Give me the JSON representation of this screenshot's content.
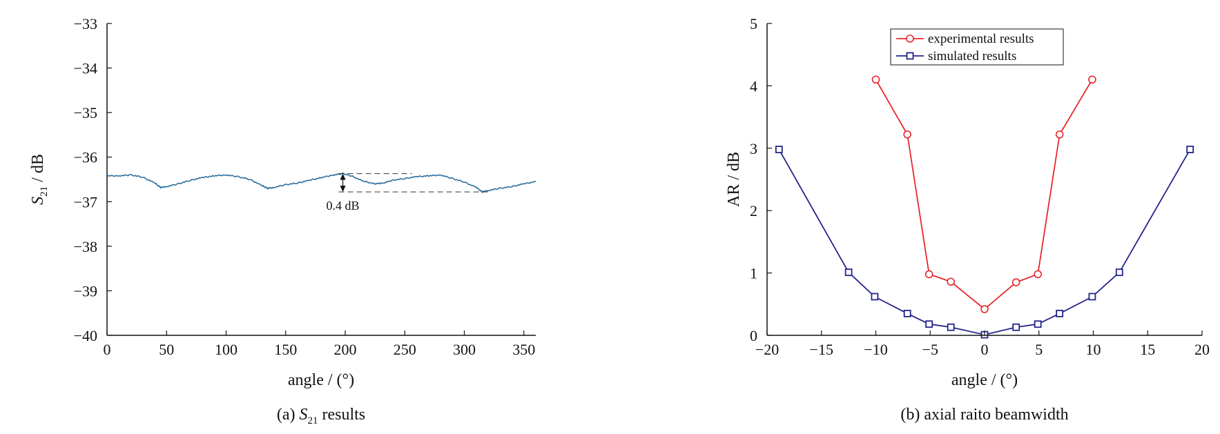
{
  "chart_data": [
    {
      "id": "a",
      "type": "line",
      "caption_prefix": "(a) ",
      "caption_var": "S",
      "caption_sub": "21",
      "caption_suffix": " results",
      "xlabel": "angle / (°)",
      "ylabel_var": "S",
      "ylabel_sub": "21",
      "ylabel_suffix": " / dB",
      "xlim": [
        0,
        360
      ],
      "ylim": [
        -40,
        -33
      ],
      "xticks": [
        0,
        50,
        100,
        150,
        200,
        250,
        300,
        350
      ],
      "xtick_labels": [
        "0",
        "50",
        "100",
        "150",
        "200",
        "250",
        "300",
        "350"
      ],
      "yticks": [
        -33,
        -34,
        -35,
        -36,
        -37,
        -38,
        -39,
        -40
      ],
      "ytick_labels": [
        "−33",
        "−34",
        "−35",
        "−36",
        "−37",
        "−38",
        "−39",
        "−40"
      ],
      "grid": false,
      "line_color": "#2e6f9e",
      "x": [
        0,
        10,
        20,
        30,
        40,
        45,
        50,
        60,
        70,
        80,
        90,
        100,
        110,
        120,
        130,
        135,
        140,
        150,
        160,
        170,
        180,
        190,
        198,
        205,
        215,
        225,
        232,
        240,
        250,
        260,
        270,
        280,
        290,
        300,
        310,
        315,
        320,
        330,
        340,
        350,
        360
      ],
      "y": [
        -36.42,
        -36.42,
        -36.4,
        -36.45,
        -36.58,
        -36.68,
        -36.66,
        -36.6,
        -36.52,
        -36.46,
        -36.42,
        -36.4,
        -36.44,
        -36.5,
        -36.64,
        -36.7,
        -36.68,
        -36.62,
        -36.58,
        -36.52,
        -36.46,
        -36.4,
        -36.37,
        -36.42,
        -36.54,
        -36.6,
        -36.58,
        -36.52,
        -36.48,
        -36.44,
        -36.42,
        -36.4,
        -36.48,
        -36.56,
        -36.68,
        -36.78,
        -36.75,
        -36.7,
        -36.66,
        -36.6,
        -36.55
      ],
      "annotation": {
        "label": "0.4 dB",
        "upper": -36.37,
        "lower": -36.78,
        "x_arrow": 198
      }
    },
    {
      "id": "b",
      "type": "line",
      "caption": "(b) axial raito beamwidth",
      "xlabel": "angle / (°)",
      "ylabel": "AR / dB",
      "xlim": [
        -20,
        20
      ],
      "ylim": [
        0,
        5
      ],
      "xticks": [
        -20,
        -15,
        -10,
        -5,
        0,
        5,
        10,
        15,
        20
      ],
      "xtick_labels": [
        "−20",
        "−15",
        "−10",
        "−5",
        "0",
        "5",
        "10",
        "15",
        "20"
      ],
      "yticks": [
        0,
        1,
        2,
        3,
        4,
        5
      ],
      "ytick_labels": [
        "0",
        "1",
        "2",
        "3",
        "4",
        "5"
      ],
      "grid": false,
      "legend_position": "top",
      "series": [
        {
          "name": "experimental results",
          "color": "#e8262a",
          "marker": "circle",
          "x": [
            -10,
            -7.1,
            -5.1,
            -3.1,
            0,
            2.9,
            4.9,
            6.9,
            9.9
          ],
          "y": [
            4.1,
            3.22,
            0.98,
            0.86,
            0.42,
            0.85,
            0.98,
            3.22,
            4.1
          ]
        },
        {
          "name": "simulated results",
          "color": "#23238c",
          "marker": "square",
          "x": [
            -18.9,
            -12.5,
            -10.1,
            -7.1,
            -5.1,
            -3.1,
            0,
            2.9,
            4.9,
            6.9,
            9.9,
            12.4,
            18.9
          ],
          "y": [
            2.98,
            1.01,
            0.62,
            0.35,
            0.18,
            0.13,
            0.01,
            0.13,
            0.18,
            0.35,
            0.62,
            1.01,
            2.98
          ]
        }
      ]
    }
  ]
}
